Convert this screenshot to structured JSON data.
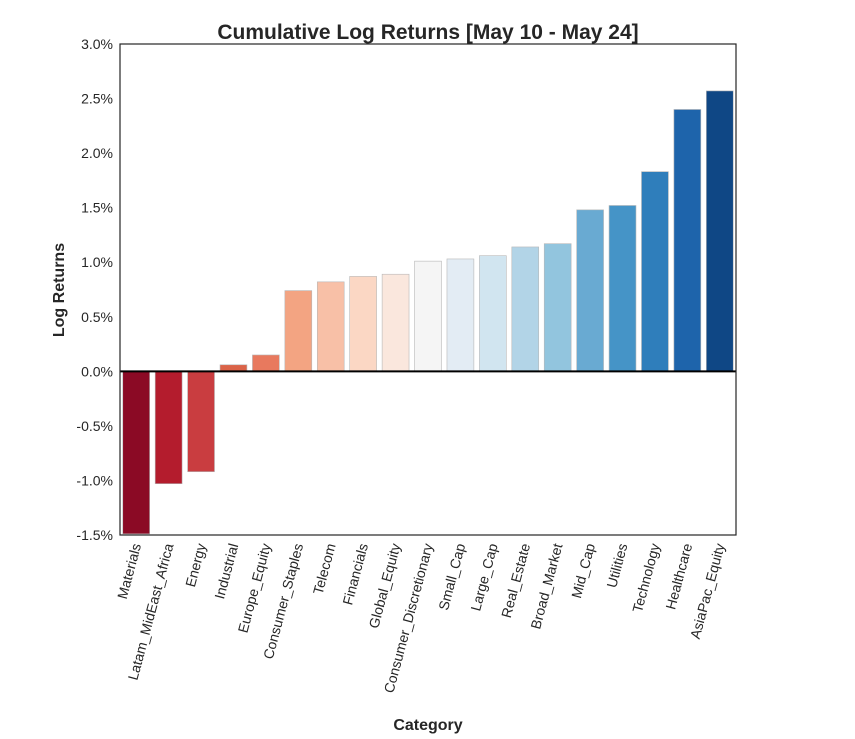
{
  "chart_data": {
    "type": "bar",
    "title": "Cumulative Log Returns [May 10 - May 24]",
    "xlabel": "Category",
    "ylabel": "Log Returns",
    "ylim": [
      -0.015,
      0.03
    ],
    "yticks": [
      -0.015,
      -0.01,
      -0.005,
      0.0,
      0.005,
      0.01,
      0.015,
      0.02,
      0.025,
      0.03
    ],
    "ytick_labels": [
      "-1.5%",
      "-1.0%",
      "-0.5%",
      "0.0%",
      "0.5%",
      "1.0%",
      "1.5%",
      "2.0%",
      "2.5%",
      "3.0%"
    ],
    "categories": [
      "Materials",
      "Latam_MidEast_Africa",
      "Energy",
      "Industrial",
      "Europe_Equity",
      "Consumer_Staples",
      "Telecom",
      "Financials",
      "Global_Equity",
      "Consumer_Discretionary",
      "Small_Cap",
      "Large_Cap",
      "Real_Estate",
      "Broad_Market",
      "Mid_Cap",
      "Utilities",
      "Technology",
      "Healthcare",
      "AsiaPac_Equity"
    ],
    "values": [
      -0.0149,
      -0.0103,
      -0.0092,
      0.0006,
      0.0015,
      0.0074,
      0.0082,
      0.0087,
      0.0089,
      0.0101,
      0.0103,
      0.0106,
      0.0114,
      0.0117,
      0.0148,
      0.0152,
      0.0183,
      0.024,
      0.0257
    ],
    "colors": [
      "#8b0a25",
      "#b41c2d",
      "#c93d40",
      "#db6348",
      "#e8795e",
      "#f3a482",
      "#f8c0a7",
      "#fbd7c4",
      "#fae7dd",
      "#f5f5f5",
      "#e3ecf4",
      "#d1e5f0",
      "#b2d4e7",
      "#92c5de",
      "#69aad2",
      "#4594c7",
      "#2f7ebb",
      "#1e64ab",
      "#0f4785"
    ],
    "grid": false,
    "legend": "none"
  }
}
